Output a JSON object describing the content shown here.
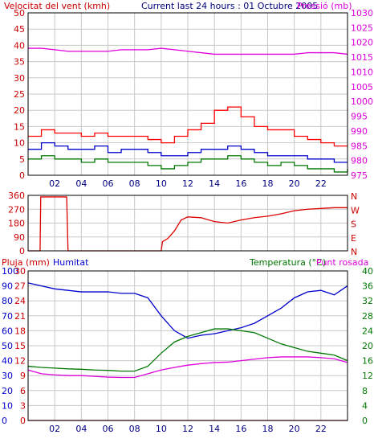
{
  "chart_data": [
    {
      "type": "line",
      "title": "Current last 24 hours : 01 Octubre 2005",
      "left_axis_label": "Velocitat del vent (kmh)",
      "right_axis_label": "Pressió (mb)",
      "x_ticks": [
        "02",
        "04",
        "06",
        "08",
        "10",
        "12",
        "14",
        "16",
        "18",
        "20",
        "22"
      ],
      "ylim_left": [
        0,
        50
      ],
      "yticks_left": [
        0,
        5,
        10,
        15,
        20,
        25,
        30,
        35,
        40,
        45,
        50
      ],
      "ylim_right": [
        975,
        1030
      ],
      "yticks_right": [
        975,
        980,
        985,
        990,
        995,
        1000,
        1005,
        1010,
        1015,
        1020,
        1025,
        1030
      ],
      "grid": true,
      "colors": {
        "gust": "#ff0000",
        "wind_avg": "#0000cc",
        "wind_min": "#007700",
        "pressure": "#dd00dd",
        "grid": "#bbbbbb"
      },
      "series": [
        {
          "key": "gust",
          "axis": "left",
          "x": [
            0,
            1,
            2,
            3,
            4,
            5,
            6,
            7,
            8,
            9,
            10,
            11,
            12,
            13,
            14,
            15,
            16,
            17,
            18,
            19,
            20,
            21,
            22,
            23,
            24
          ],
          "values": [
            12,
            14,
            13,
            13,
            12,
            13,
            12,
            12,
            12,
            11,
            10,
            12,
            14,
            16,
            20,
            21,
            18,
            15,
            14,
            14,
            12,
            11,
            10,
            9,
            9
          ]
        },
        {
          "key": "wind_avg",
          "axis": "left",
          "x": [
            0,
            1,
            2,
            3,
            4,
            5,
            6,
            7,
            8,
            9,
            10,
            11,
            12,
            13,
            14,
            15,
            16,
            17,
            18,
            19,
            20,
            21,
            22,
            23,
            24
          ],
          "values": [
            8,
            10,
            9,
            8,
            8,
            9,
            7,
            8,
            8,
            7,
            6,
            6,
            7,
            8,
            8,
            9,
            8,
            7,
            6,
            6,
            6,
            5,
            5,
            4,
            4
          ]
        },
        {
          "key": "wind_min",
          "axis": "left",
          "x": [
            0,
            1,
            2,
            3,
            4,
            5,
            6,
            7,
            8,
            9,
            10,
            11,
            12,
            13,
            14,
            15,
            16,
            17,
            18,
            19,
            20,
            21,
            22,
            23,
            24
          ],
          "values": [
            5,
            6,
            5,
            5,
            4,
            5,
            4,
            4,
            4,
            3,
            2,
            3,
            4,
            5,
            5,
            6,
            5,
            4,
            3,
            4,
            3,
            2,
            2,
            1,
            2
          ]
        },
        {
          "key": "pressure",
          "axis": "right",
          "x": [
            0,
            1,
            2,
            3,
            4,
            5,
            6,
            7,
            8,
            9,
            10,
            11,
            12,
            13,
            14,
            15,
            16,
            17,
            18,
            19,
            20,
            21,
            22,
            23,
            24
          ],
          "values": [
            1018,
            1018,
            1017.5,
            1017,
            1017,
            1017,
            1017,
            1017.5,
            1017.5,
            1017.5,
            1018,
            1017.5,
            1017,
            1016.5,
            1016,
            1016,
            1016,
            1016,
            1016,
            1016,
            1016,
            1016.5,
            1016.5,
            1016.5,
            1016
          ]
        }
      ]
    },
    {
      "type": "line",
      "x_ticks": [],
      "ylim": [
        0,
        360
      ],
      "yticks_left": [
        0,
        90,
        180,
        270,
        360
      ],
      "direction_labels": [
        "N",
        "W",
        "S",
        "E",
        "N"
      ],
      "grid": true,
      "colors": {
        "direction": "#dd0000"
      },
      "series": [
        {
          "key": "direction",
          "x": [
            0,
            0.9,
            0.95,
            2.9,
            3.0,
            4,
            6,
            8,
            9,
            10,
            10.1,
            10.5,
            11,
            11.5,
            12,
            13,
            14,
            15,
            16,
            17,
            18,
            19,
            20,
            21,
            22,
            23,
            24
          ],
          "values": [
            0,
            0,
            350,
            350,
            0,
            0,
            0,
            0,
            0,
            0,
            60,
            80,
            130,
            200,
            220,
            215,
            190,
            180,
            200,
            215,
            225,
            240,
            260,
            270,
            275,
            280,
            280
          ]
        }
      ]
    },
    {
      "type": "line",
      "left_labels": [
        "Pluja (mm)",
        "Humitat"
      ],
      "right_labels": [
        "Temperatura (°C)",
        "Punt rosada"
      ],
      "x_ticks": [
        "02",
        "04",
        "06",
        "08",
        "10",
        "12",
        "14",
        "16",
        "18",
        "20",
        "22"
      ],
      "yticks_pluja": [
        0,
        3,
        6,
        9,
        12,
        15,
        18,
        21,
        24,
        27,
        30
      ],
      "yticks_humitat": [
        0,
        10,
        20,
        30,
        40,
        50,
        60,
        70,
        80,
        90,
        100
      ],
      "yticks_temp": [
        0,
        4,
        8,
        12,
        16,
        20,
        24,
        28,
        32,
        36,
        40
      ],
      "ylim_humitat": [
        0,
        100
      ],
      "ylim_temp": [
        0,
        40
      ],
      "grid": true,
      "colors": {
        "rain": "#cc0000",
        "humidity": "#0000cc",
        "temperature": "#007700",
        "dewpoint": "#dd00dd"
      },
      "series": [
        {
          "key": "rain",
          "axis": "pluja",
          "x": [
            0,
            24
          ],
          "values": [
            0,
            0
          ]
        },
        {
          "key": "humidity",
          "axis": "humitat",
          "x": [
            0,
            1,
            2,
            3,
            4,
            5,
            6,
            7,
            8,
            9,
            10,
            11,
            12,
            13,
            14,
            15,
            16,
            17,
            18,
            19,
            20,
            21,
            22,
            23,
            24
          ],
          "values": [
            92,
            90,
            88,
            87,
            86,
            86,
            86,
            85,
            85,
            82,
            70,
            60,
            55,
            57,
            58,
            60,
            62,
            65,
            70,
            75,
            82,
            86,
            87,
            84,
            90
          ]
        },
        {
          "key": "temperature",
          "axis": "temp",
          "x": [
            0,
            1,
            2,
            3,
            4,
            5,
            6,
            7,
            8,
            9,
            10,
            11,
            12,
            13,
            14,
            15,
            16,
            17,
            18,
            19,
            20,
            21,
            22,
            23,
            24
          ],
          "values": [
            14.5,
            14.2,
            14,
            13.8,
            13.7,
            13.5,
            13.4,
            13.2,
            13.2,
            14.5,
            18,
            21,
            22.5,
            23.5,
            24.5,
            24.5,
            24,
            23.5,
            22,
            20.5,
            19.5,
            18.5,
            18,
            17.5,
            16
          ]
        },
        {
          "key": "dewpoint",
          "axis": "temp",
          "x": [
            0,
            1,
            2,
            3,
            4,
            5,
            6,
            7,
            8,
            9,
            10,
            11,
            12,
            13,
            14,
            15,
            16,
            17,
            18,
            19,
            20,
            21,
            22,
            23,
            24
          ],
          "values": [
            13.5,
            12.5,
            12.2,
            12,
            12,
            11.8,
            11.6,
            11.5,
            11.5,
            12.5,
            13.5,
            14.2,
            14.8,
            15.2,
            15.5,
            15.6,
            16,
            16.4,
            16.8,
            17,
            17,
            17,
            16.8,
            16.5,
            15.5
          ]
        }
      ]
    }
  ]
}
